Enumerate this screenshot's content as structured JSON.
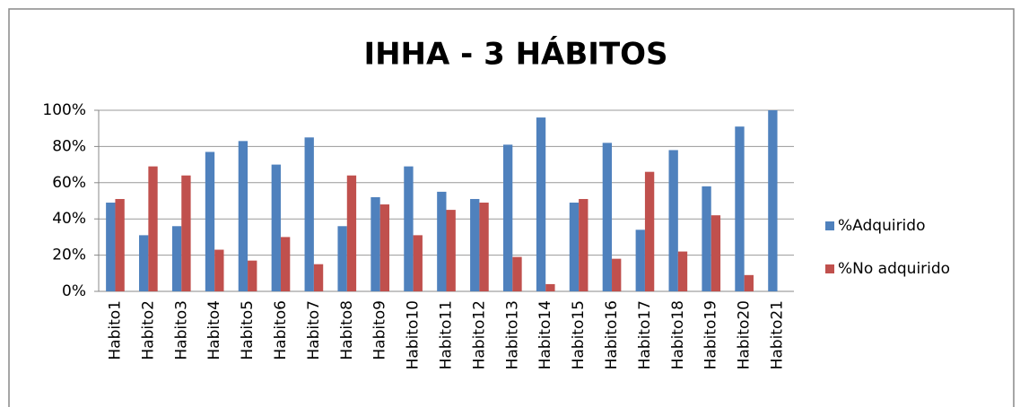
{
  "chart_data": {
    "type": "bar",
    "title": "IHHA - 3 HÁBITOS",
    "categories": [
      "Habito1",
      "Habito2",
      "Habito3",
      "Habito4",
      "Habito5",
      "Habito6",
      "Habito7",
      "Habito8",
      "Habito9",
      "Habito10",
      "Habito11",
      "Habito12",
      "Habito13",
      "Habito14",
      "Habito15",
      "Habito16",
      "Habito17",
      "Habito18",
      "Habito19",
      "Habito20",
      "Habito21"
    ],
    "series": [
      {
        "name": "%Adquirido",
        "color": "#4f81bd",
        "values": [
          49,
          31,
          36,
          77,
          83,
          70,
          85,
          36,
          52,
          69,
          55,
          51,
          81,
          96,
          49,
          82,
          34,
          78,
          58,
          91,
          100
        ]
      },
      {
        "name": "%No adquirido",
        "color": "#c0504d",
        "values": [
          51,
          69,
          64,
          23,
          17,
          30,
          15,
          64,
          48,
          31,
          45,
          49,
          19,
          4,
          51,
          18,
          66,
          22,
          42,
          9,
          0
        ]
      }
    ],
    "ylim": [
      0,
      100
    ],
    "yticks": [
      {
        "value": 0,
        "label": "0%"
      },
      {
        "value": 20,
        "label": "20%"
      },
      {
        "value": 40,
        "label": "40%"
      },
      {
        "value": 60,
        "label": "60%"
      },
      {
        "value": 80,
        "label": "80%"
      },
      {
        "value": 100,
        "label": "100%"
      }
    ],
    "grid": true,
    "legend": "right"
  }
}
